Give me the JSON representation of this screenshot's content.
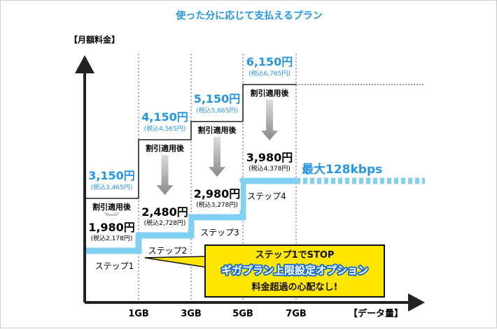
{
  "title": "使った分に応じて支払えるプラン",
  "colors": {
    "accent": "#2296e8",
    "band": "#7fd0f2",
    "arrow": "#8a8a8a",
    "callout_fill": "#ffe600",
    "callout_text": "#111111",
    "option_text": "#ffffff",
    "option_stroke": "#1a6fd0"
  },
  "chart_data": {
    "type": "step",
    "ylabel": "【月額料金】",
    "xlabel": "【データ量】",
    "x_ticks": [
      "1GB",
      "3GB",
      "5GB",
      "7GB"
    ],
    "steps": [
      {
        "name": "ステップ1",
        "price": "3,150円",
        "price_tax": "(税込3,465円)",
        "discount_label": "割引適用後",
        "discount_price": "1,980円",
        "discount_tax": "(税込2,178円)"
      },
      {
        "name": "ステップ2",
        "price": "4,150円",
        "price_tax": "(税込4,565円)",
        "discount_label": "割引適用後",
        "discount_price": "2,480円",
        "discount_tax": "(税込2,728円)"
      },
      {
        "name": "ステップ3",
        "price": "5,150円",
        "price_tax": "(税込5,665円)",
        "discount_label": "割引適用後",
        "discount_price": "2,980円",
        "discount_tax": "(税込3,278円)"
      },
      {
        "name": "ステップ4",
        "price": "6,150円",
        "price_tax": "(税込6,765円)",
        "discount_label": "割引適用後",
        "discount_price": "3,980円",
        "discount_tax": "(税込4,378円)"
      }
    ],
    "cap_label": "最大128kbps"
  },
  "callout": {
    "line1": "ステップ1でSTOP",
    "line2": "ギガプラン上限設定オプション",
    "line3": "料金超過の心配なし!"
  }
}
